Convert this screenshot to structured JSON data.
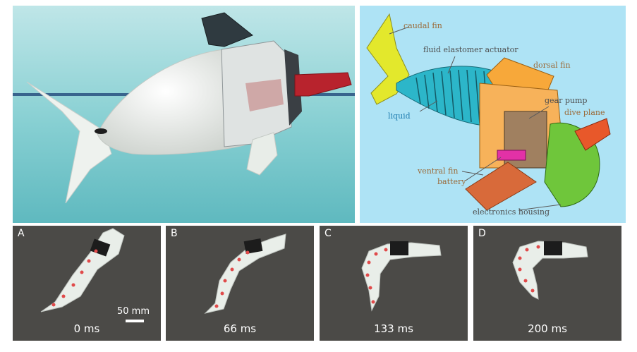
{
  "photo": {},
  "schematic": {
    "labels": {
      "caudal_fin": "caudal fin",
      "fluid_elastomer_actuator": "fluid elastomer actuator",
      "dorsal_fin": "dorsal fin",
      "gear_pump": "gear pump",
      "dive_plane": "dive plane",
      "liquid": "liquid",
      "ventral_fin": "ventral fin",
      "battery": "battery",
      "electronics_housing": "electronics housing"
    },
    "colors": {
      "caudal_fin": "#e3e82c",
      "actuator": "#2cb6c9",
      "dorsal_fin": "#f7a83a",
      "dive_plane": "#e8582a",
      "electronics_housing": "#6fc63b",
      "battery": "#e231a6",
      "ventral_fin": "#f39a3a"
    }
  },
  "sequence": [
    {
      "letter": "A",
      "time": "0 ms"
    },
    {
      "letter": "B",
      "time": "66 ms"
    },
    {
      "letter": "C",
      "time": "133 ms"
    },
    {
      "letter": "D",
      "time": "200 ms"
    }
  ],
  "scale_bar": {
    "label": "50 mm"
  }
}
